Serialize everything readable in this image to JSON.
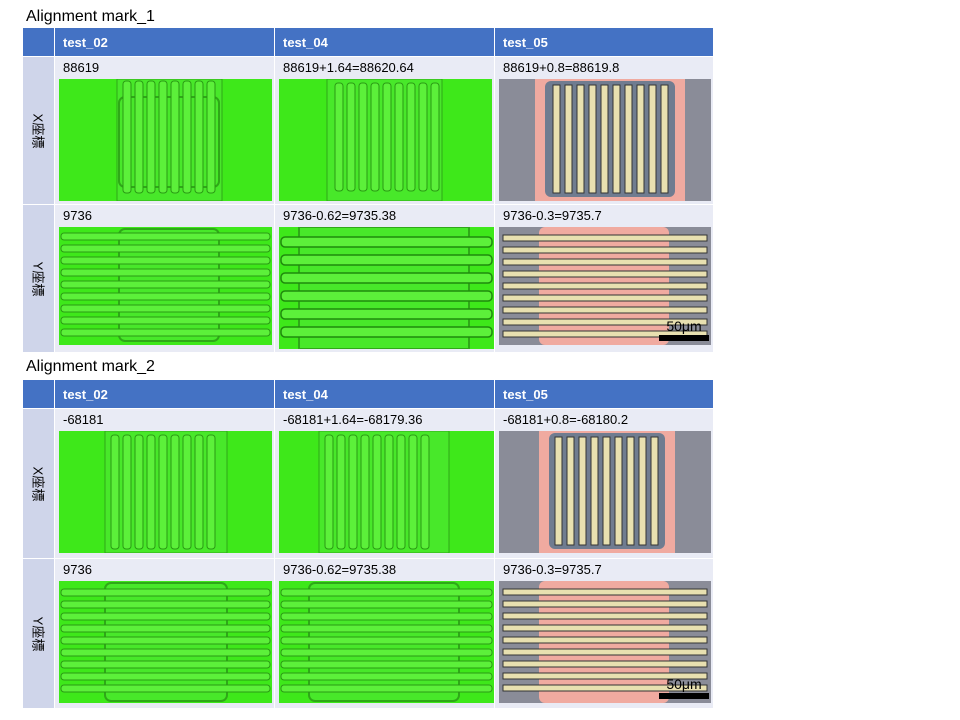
{
  "sections": [
    {
      "title": "Alignment mark_1",
      "columns": [
        "test_02",
        "test_04",
        "test_05"
      ],
      "rows": [
        {
          "label": "X座標",
          "values": [
            "88619",
            "88619+1.64=88620.64",
            "88619+0.8=88619.8"
          ]
        },
        {
          "label": "Y座標",
          "values": [
            "9736",
            "9736-0.62=9735.38",
            "9736-0.3=9735.7"
          ]
        }
      ],
      "scale_label": "50μm"
    },
    {
      "title": "Alignment mark_2",
      "columns": [
        "test_02",
        "test_04",
        "test_05"
      ],
      "rows": [
        {
          "label": "X座標",
          "values": [
            "-68181",
            "-68181+1.64=-68179.36",
            "-68181+0.8=-68180.2"
          ]
        },
        {
          "label": "Y座標",
          "values": [
            "9736",
            "9736-0.62=9735.38",
            "9736-0.3=9735.7"
          ]
        }
      ],
      "scale_label": "50μm"
    }
  ],
  "colors": {
    "header_bg": "#4472c4",
    "side_bg": "#cfd5ea",
    "cell_bg": "#e9ebf5",
    "micrograph_green": "#3ee81a",
    "micrograph_gray": "#8a8c98",
    "micrograph_pink": "#f0aaa0",
    "micrograph_cream": "#e8e0b0"
  }
}
